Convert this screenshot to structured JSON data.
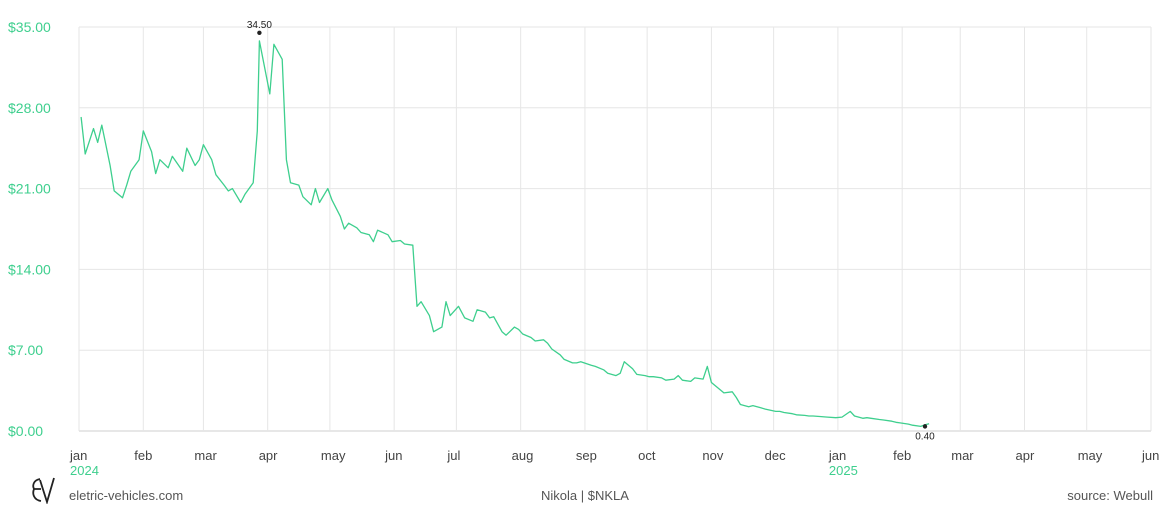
{
  "footer": {
    "site": "eletric-vehicles.com",
    "title": "Nikola | $NKLA",
    "source": "source: Webull"
  },
  "logo": {
    "icon": "ev-monogram-logo"
  },
  "colors": {
    "line": "#3ecf8e",
    "axis_text": "#3ecf8e",
    "grid": "#e6e6e6"
  },
  "chart_data": {
    "type": "line",
    "series": [
      {
        "x": [
          "2024-01-02",
          "2024-01-04",
          "2024-01-08",
          "2024-01-10",
          "2024-01-12",
          "2024-01-16",
          "2024-01-18",
          "2024-01-22",
          "2024-01-24",
          "2024-01-26",
          "2024-01-30",
          "2024-02-01",
          "2024-02-05",
          "2024-02-07",
          "2024-02-09",
          "2024-02-13",
          "2024-02-15",
          "2024-02-20",
          "2024-02-22",
          "2024-02-26",
          "2024-02-28",
          "2024-03-01",
          "2024-03-05",
          "2024-03-07",
          "2024-03-11",
          "2024-03-13",
          "2024-03-15",
          "2024-03-19",
          "2024-03-21",
          "2024-03-25",
          "2024-03-27",
          "2024-03-28",
          "2024-04-02",
          "2024-04-04",
          "2024-04-08",
          "2024-04-10",
          "2024-04-12",
          "2024-04-16",
          "2024-04-18",
          "2024-04-22",
          "2024-04-24",
          "2024-04-26",
          "2024-04-30",
          "2024-05-02",
          "2024-05-06",
          "2024-05-08",
          "2024-05-10",
          "2024-05-14",
          "2024-05-16",
          "2024-05-20",
          "2024-05-22",
          "2024-05-24",
          "2024-05-29",
          "2024-05-31",
          "2024-06-04",
          "2024-06-06",
          "2024-06-10",
          "2024-06-12",
          "2024-06-14",
          "2024-06-18",
          "2024-06-20",
          "2024-06-24",
          "2024-06-26",
          "2024-06-28",
          "2024-07-02",
          "2024-07-05",
          "2024-07-09",
          "2024-07-11",
          "2024-07-15",
          "2024-07-17",
          "2024-07-19",
          "2024-07-23",
          "2024-07-25",
          "2024-07-29",
          "2024-07-31",
          "2024-08-02",
          "2024-08-06",
          "2024-08-08",
          "2024-08-12",
          "2024-08-14",
          "2024-08-16",
          "2024-08-20",
          "2024-08-22",
          "2024-08-26",
          "2024-08-28",
          "2024-08-30",
          "2024-09-04",
          "2024-09-06",
          "2024-09-10",
          "2024-09-12",
          "2024-09-16",
          "2024-09-18",
          "2024-09-20",
          "2024-09-24",
          "2024-09-26",
          "2024-09-30",
          "2024-10-02",
          "2024-10-04",
          "2024-10-08",
          "2024-10-10",
          "2024-10-14",
          "2024-10-16",
          "2024-10-18",
          "2024-10-22",
          "2024-10-24",
          "2024-10-28",
          "2024-10-30",
          "2024-11-01",
          "2024-11-05",
          "2024-11-07",
          "2024-11-11",
          "2024-11-13",
          "2024-11-15",
          "2024-11-19",
          "2024-11-21",
          "2024-11-25",
          "2024-11-27",
          "2024-12-02",
          "2024-12-04",
          "2024-12-06",
          "2024-12-10",
          "2024-12-12",
          "2024-12-16",
          "2024-12-18",
          "2024-12-20",
          "2024-12-24",
          "2024-12-27",
          "2024-12-31",
          "2025-01-03",
          "2025-01-07",
          "2025-01-09",
          "2025-01-13",
          "2025-01-15",
          "2025-01-17",
          "2025-01-21",
          "2025-01-23",
          "2025-01-27",
          "2025-01-29",
          "2025-01-31",
          "2025-02-04",
          "2025-02-06",
          "2025-02-10",
          "2025-02-12",
          "2025-02-14"
        ],
        "y": [
          27.2,
          24.0,
          26.2,
          25.0,
          26.5,
          23.0,
          20.8,
          20.2,
          21.3,
          22.5,
          23.5,
          26.0,
          24.2,
          22.3,
          23.5,
          22.8,
          23.8,
          22.5,
          24.5,
          23.0,
          23.5,
          24.8,
          23.5,
          22.2,
          21.3,
          20.8,
          21.0,
          19.8,
          20.5,
          21.5,
          26.0,
          33.8,
          29.2,
          33.5,
          32.2,
          23.5,
          21.5,
          21.3,
          20.3,
          19.6,
          21.0,
          19.8,
          21.0,
          20.0,
          18.6,
          17.5,
          18.0,
          17.6,
          17.2,
          17.0,
          16.4,
          17.4,
          17.0,
          16.4,
          16.5,
          16.2,
          16.1,
          10.8,
          11.2,
          10.0,
          8.6,
          9.0,
          11.2,
          10.0,
          10.8,
          9.8,
          9.5,
          10.5,
          10.3,
          9.8,
          9.9,
          8.6,
          8.3,
          9.0,
          8.8,
          8.4,
          8.1,
          7.8,
          7.9,
          7.6,
          7.1,
          6.6,
          6.2,
          5.9,
          5.9,
          6.0,
          5.7,
          5.6,
          5.3,
          5.0,
          4.8,
          5.0,
          6.0,
          5.4,
          4.9,
          4.8,
          4.7,
          4.7,
          4.6,
          4.4,
          4.5,
          4.8,
          4.4,
          4.3,
          4.6,
          4.5,
          5.6,
          4.2,
          3.6,
          3.3,
          3.4,
          2.9,
          2.3,
          2.1,
          2.2,
          2.0,
          1.9,
          1.7,
          1.7,
          1.6,
          1.5,
          1.4,
          1.35,
          1.3,
          1.3,
          1.25,
          1.2,
          1.15,
          1.2,
          1.7,
          1.3,
          1.1,
          1.15,
          1.1,
          1.0,
          0.95,
          0.85,
          0.75,
          0.7,
          0.6,
          0.5,
          0.4,
          0.55,
          0.62
        ]
      }
    ],
    "ylim": [
      0,
      35
    ],
    "yticks": [
      0,
      7,
      14,
      21,
      28,
      35
    ],
    "ytick_labels": [
      "$0.00",
      "$7.00",
      "$14.00",
      "$21.00",
      "$28.00",
      "$35.00"
    ],
    "xlim": [
      "2024-01-01",
      "2025-06-01"
    ],
    "xticks": [
      "2024-01-01",
      "2024-02-01",
      "2024-03-01",
      "2024-04-01",
      "2024-05-01",
      "2024-06-01",
      "2024-07-01",
      "2024-08-01",
      "2024-09-01",
      "2024-10-01",
      "2024-11-01",
      "2024-12-01",
      "2025-01-01",
      "2025-02-01",
      "2025-03-01",
      "2025-04-01",
      "2025-05-01",
      "2025-06-01"
    ],
    "xtick_labels": [
      "jan",
      "feb",
      "mar",
      "apr",
      "may",
      "jun",
      "jul",
      "aug",
      "sep",
      "oct",
      "nov",
      "dec",
      "jan",
      "feb",
      "mar",
      "apr",
      "may",
      "jun"
    ],
    "year_labels": [
      {
        "x": "2024-01-01",
        "label": "2024"
      },
      {
        "x": "2025-01-01",
        "label": "2025"
      }
    ],
    "annotations": [
      {
        "x": "2024-03-28",
        "y": 34.5,
        "label": "34.50",
        "position": "above"
      },
      {
        "x": "2025-02-12",
        "y": 0.4,
        "label": "0.40",
        "position": "below"
      }
    ],
    "grid": true
  }
}
